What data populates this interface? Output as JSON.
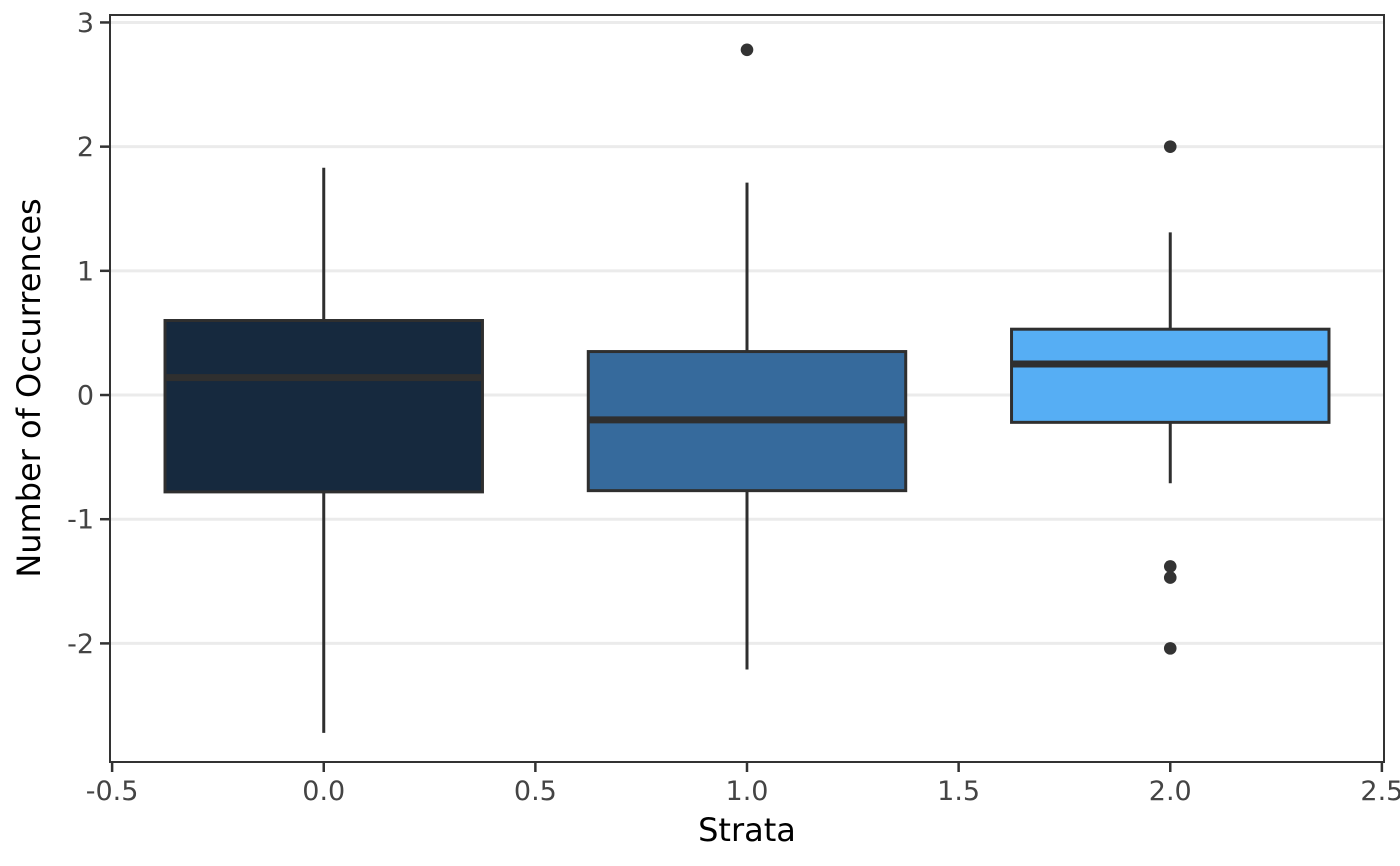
{
  "chart_data": {
    "type": "box",
    "title": "",
    "xlabel": "Strata",
    "ylabel": "Number of Occurrences",
    "legend": "none",
    "grid": "horizontal-only",
    "xlim": [
      -0.505,
      2.505
    ],
    "ylim": [
      -2.955,
      3.06
    ],
    "x_ticks": [
      {
        "value": -0.5,
        "label": "-0.5"
      },
      {
        "value": 0.0,
        "label": "0.0"
      },
      {
        "value": 0.5,
        "label": "0.5"
      },
      {
        "value": 1.0,
        "label": "1.0"
      },
      {
        "value": 1.5,
        "label": "1.5"
      },
      {
        "value": 2.0,
        "label": "2.0"
      },
      {
        "value": 2.5,
        "label": "2.5"
      }
    ],
    "y_ticks": [
      {
        "value": 3,
        "label": "3"
      },
      {
        "value": 2,
        "label": "2"
      },
      {
        "value": 1,
        "label": "1"
      },
      {
        "value": 0,
        "label": "0"
      },
      {
        "value": -1,
        "label": "-1"
      },
      {
        "value": -2,
        "label": "-2"
      }
    ],
    "box_width_units": 0.75,
    "groups": [
      {
        "strata": 0,
        "fill": "#16293E",
        "whisker_low": -2.72,
        "q1": -0.78,
        "median": 0.14,
        "q3": 0.6,
        "whisker_high": 1.83,
        "outliers": []
      },
      {
        "strata": 1,
        "fill": "#366A9C",
        "whisker_low": -2.21,
        "q1": -0.77,
        "median": -0.2,
        "q3": 0.35,
        "whisker_high": 1.71,
        "outliers": [
          2.78
        ]
      },
      {
        "strata": 2,
        "fill": "#56AEF4",
        "whisker_low": -0.71,
        "q1": -0.22,
        "median": 0.25,
        "q3": 0.53,
        "whisker_high": 1.31,
        "outliers": [
          2.0,
          -1.38,
          -1.47,
          -2.04
        ]
      }
    ],
    "colors": {
      "panel_border": "#333333",
      "box_stroke": "#2F2F2F",
      "median_stroke": "#2F2F2F",
      "whisker_stroke": "#2F2F2F",
      "outlier_fill": "#333333",
      "gridline": "#EBEBEB",
      "tick_mark": "#333333",
      "tick_label": "#444444",
      "axis_title": "#000000",
      "background": "#FFFFFF"
    }
  }
}
